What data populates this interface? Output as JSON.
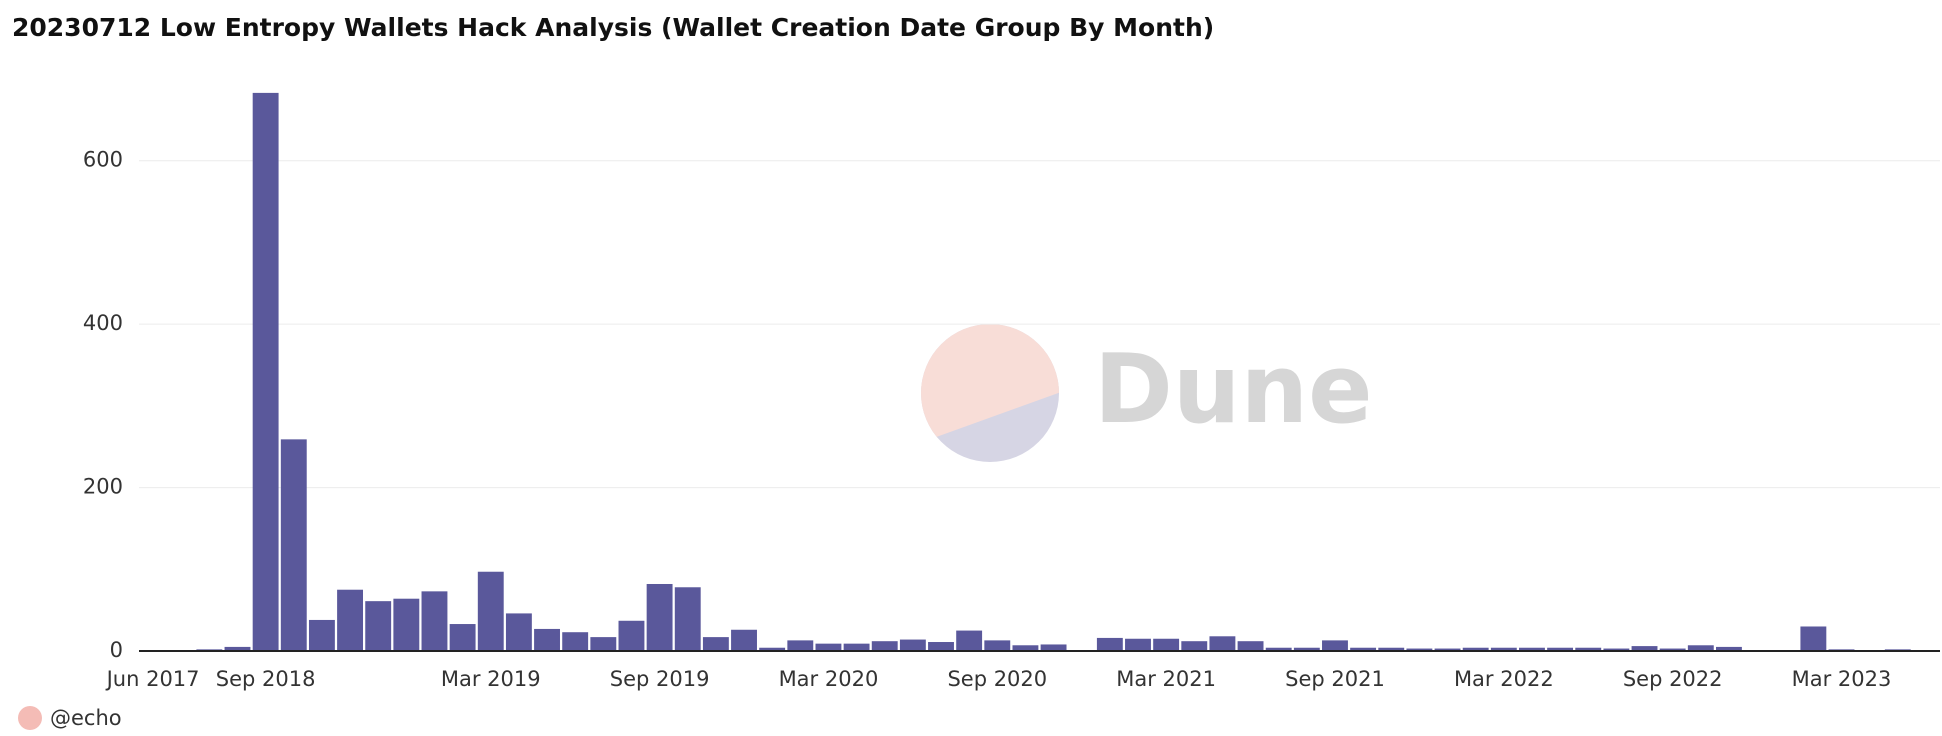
{
  "chart_data": {
    "type": "bar",
    "title": "20230712 Low Entropy Wallets Hack Analysis (Wallet Creation Date Group By Month)",
    "watermark": "Dune",
    "categories": [
      "Jun 2017",
      null,
      null,
      null,
      "Sep 2018",
      null,
      null,
      null,
      null,
      null,
      null,
      null,
      "Mar 2019",
      null,
      null,
      null,
      null,
      null,
      "Sep 2019",
      null,
      null,
      null,
      null,
      null,
      "Mar 2020",
      null,
      null,
      null,
      null,
      null,
      "Sep 2020",
      null,
      null,
      null,
      null,
      null,
      "Mar 2021",
      null,
      null,
      null,
      null,
      null,
      "Sep 2021",
      null,
      null,
      null,
      null,
      null,
      "Mar 2022",
      null,
      null,
      null,
      null,
      null,
      "Sep 2022",
      null,
      null,
      null,
      null,
      null,
      "Mar 2023",
      null,
      null,
      null
    ],
    "series": [
      {
        "name": "@echo",
        "color": "#5a589b",
        "legend_color": "#f4bcb6",
        "values": [
          null,
          null,
          2,
          5,
          683,
          259,
          38,
          75,
          61,
          64,
          73,
          33,
          97,
          46,
          27,
          23,
          17,
          37,
          82,
          78,
          17,
          26,
          4,
          13,
          9,
          9,
          12,
          14,
          11,
          25,
          13,
          7,
          8,
          1,
          16,
          15,
          15,
          12,
          18,
          12,
          4,
          4,
          13,
          4,
          4,
          3,
          3,
          4,
          4,
          4,
          4,
          4,
          3,
          6,
          3,
          7,
          5,
          1,
          null,
          30,
          2,
          null,
          2,
          null
        ]
      }
    ],
    "ylim": [
      0,
      700
    ],
    "yticks": [
      0,
      200,
      400,
      600
    ],
    "grid": true
  }
}
